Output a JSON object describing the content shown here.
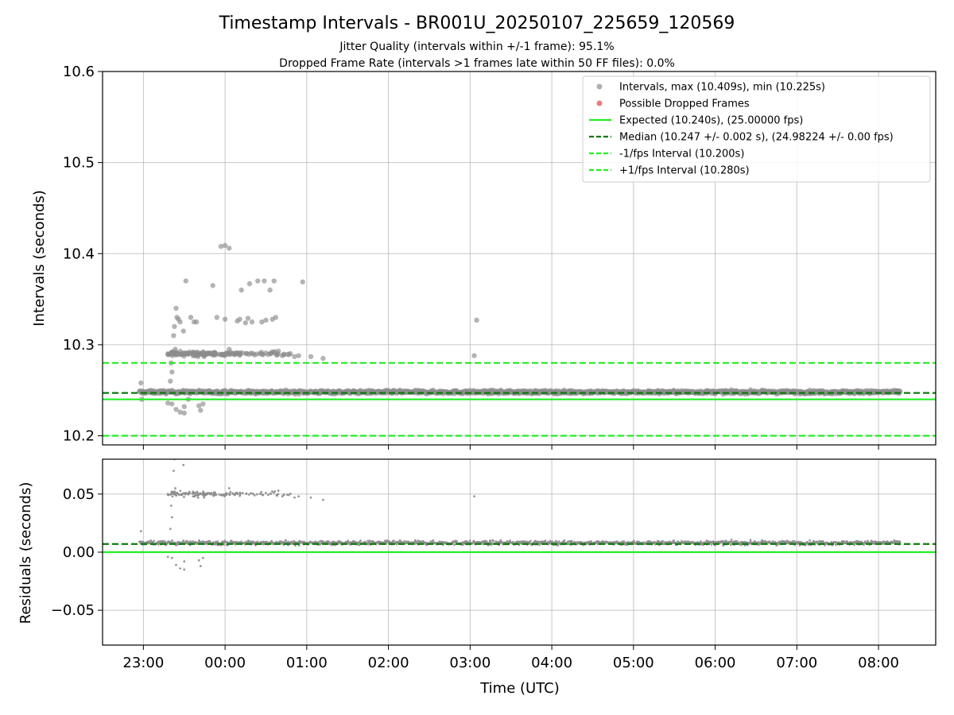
{
  "chart_data": {
    "type": "scatter",
    "title": "Timestamp Intervals - BR001U_20250107_225659_120569",
    "subtitle_lines": [
      "Jitter Quality (intervals within +/-1 frame): 95.1%",
      "Dropped Frame Rate (intervals >1 frames late within 50 FF files): 0.0%"
    ],
    "xlabel": "Time (UTC)",
    "x_tick_labels": [
      "23:00",
      "00:00",
      "01:00",
      "02:00",
      "03:00",
      "04:00",
      "05:00",
      "06:00",
      "07:00",
      "08:00"
    ],
    "x_tick_hours": [
      0,
      1,
      2,
      3,
      4,
      5,
      6,
      7,
      8,
      9
    ],
    "x_range_hours": [
      -0.5,
      9.7
    ],
    "x_range_note": "hours after 2025-01-07 23:00 UTC",
    "grid": true,
    "legend_position": "top-right",
    "colors": {
      "intervals": "#8c8c8c",
      "dropped": "#e8646a",
      "expected": "#22ee22",
      "median": "#0a7a0a",
      "fps_band": "#22ee22",
      "grid": "#b0b0b0"
    },
    "top_panel": {
      "ylabel": "Intervals (seconds)",
      "ylim": [
        10.19,
        10.6
      ],
      "y_ticks": [
        10.2,
        10.3,
        10.4,
        10.5,
        10.6
      ],
      "y_tick_labels": [
        "10.2",
        "10.3",
        "10.4",
        "10.5",
        "10.6"
      ],
      "expected": 10.24,
      "median": 10.247,
      "minus_fps": 10.2,
      "plus_fps": 10.28,
      "max_interval": 10.409,
      "min_interval": 10.225,
      "main_band": {
        "x_start": -0.05,
        "x_end": 9.27,
        "y_center": 10.248,
        "y_spread": 0.003
      },
      "outliers": [
        [
          -0.03,
          10.258
        ],
        [
          -0.02,
          10.24
        ],
        [
          0.3,
          10.29
        ],
        [
          0.33,
          10.26
        ],
        [
          0.34,
          10.28
        ],
        [
          0.35,
          10.27
        ],
        [
          0.37,
          10.31
        ],
        [
          0.38,
          10.32
        ],
        [
          0.39,
          10.295
        ],
        [
          0.4,
          10.34
        ],
        [
          0.41,
          10.33
        ],
        [
          0.43,
          10.328
        ],
        [
          0.45,
          10.325
        ],
        [
          0.47,
          10.29
        ],
        [
          0.49,
          10.315
        ],
        [
          0.52,
          10.37
        ],
        [
          0.55,
          10.29
        ],
        [
          0.58,
          10.33
        ],
        [
          0.62,
          10.325
        ],
        [
          0.65,
          10.325
        ],
        [
          0.7,
          10.29
        ],
        [
          0.78,
          10.29
        ],
        [
          0.85,
          10.365
        ],
        [
          0.9,
          10.33
        ],
        [
          0.95,
          10.408
        ],
        [
          1.0,
          10.409
        ],
        [
          1.05,
          10.406
        ],
        [
          1.0,
          10.328
        ],
        [
          1.05,
          10.295
        ],
        [
          1.1,
          10.29
        ],
        [
          1.15,
          10.326
        ],
        [
          1.18,
          10.328
        ],
        [
          1.2,
          10.36
        ],
        [
          1.25,
          10.324
        ],
        [
          1.28,
          10.329
        ],
        [
          1.3,
          10.367
        ],
        [
          1.33,
          10.325
        ],
        [
          1.4,
          10.37
        ],
        [
          1.45,
          10.325
        ],
        [
          1.48,
          10.37
        ],
        [
          1.5,
          10.327
        ],
        [
          1.55,
          10.36
        ],
        [
          1.58,
          10.328
        ],
        [
          1.6,
          10.37
        ],
        [
          1.62,
          10.33
        ],
        [
          1.65,
          10.29
        ],
        [
          1.7,
          10.288
        ],
        [
          1.85,
          10.287
        ],
        [
          1.9,
          10.288
        ],
        [
          1.95,
          10.369
        ],
        [
          2.05,
          10.287
        ],
        [
          2.2,
          10.285
        ],
        [
          4.05,
          10.288
        ],
        [
          4.08,
          10.327
        ],
        [
          0.35,
          10.235
        ],
        [
          0.4,
          10.229
        ],
        [
          0.45,
          10.226
        ],
        [
          0.5,
          10.225
        ],
        [
          0.55,
          10.24
        ],
        [
          0.68,
          10.233
        ],
        [
          0.7,
          10.228
        ],
        [
          0.73,
          10.235
        ],
        [
          0.3,
          10.236
        ],
        [
          0.5,
          10.232
        ]
      ],
      "dense_cluster": {
        "x_start": 0.3,
        "x_end": 1.8,
        "y_center": 10.29,
        "y_spread": 0.004
      }
    },
    "bottom_panel": {
      "ylabel": "Residuals (seconds)",
      "ylim": [
        -0.08,
        0.08
      ],
      "y_ticks": [
        -0.05,
        0.0,
        0.05
      ],
      "y_tick_labels": [
        "−0.05",
        "0.00",
        "0.05"
      ],
      "expected": 0.0,
      "median": 0.007
    },
    "legend": [
      {
        "label": "Intervals, max (10.409s), min (10.225s)",
        "kind": "dot",
        "color": "#a0a0a0"
      },
      {
        "label": "Possible Dropped Frames",
        "kind": "dot",
        "color": "#e8646a"
      },
      {
        "label": "Expected (10.240s), (25.00000 fps)",
        "kind": "solid",
        "color": "#22ee22"
      },
      {
        "label": "Median (10.247 +/- 0.002 s), (24.98224 +/- 0.00 fps)",
        "kind": "dashed",
        "color": "#0a7a0a"
      },
      {
        "label": "-1/fps Interval (10.200s)",
        "kind": "dashed",
        "color": "#22ee22"
      },
      {
        "label": "+1/fps Interval (10.280s)",
        "kind": "dashed",
        "color": "#22ee22"
      }
    ]
  }
}
